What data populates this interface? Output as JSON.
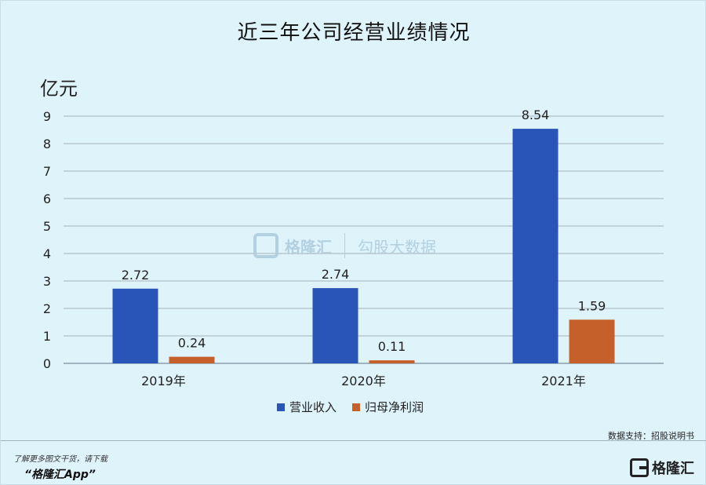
{
  "title": "近三年公司经营业绩情况",
  "unit_label": "亿元",
  "source": "数据支持：招股说明书",
  "promo": {
    "line1": "了解更多图文干货，请下载",
    "line2": "“格隆汇App”"
  },
  "brand": {
    "name": "格隆汇"
  },
  "watermark": {
    "left": "格隆汇",
    "right": "勾股大数据"
  },
  "chart_data": {
    "type": "bar",
    "title": "近三年公司经营业绩情况",
    "ylabel": "亿元",
    "xlabel": "",
    "categories": [
      "2019年",
      "2020年",
      "2021年"
    ],
    "series": [
      {
        "name": "营业收入",
        "values": [
          2.72,
          2.74,
          8.54
        ],
        "color": "#2a55b8"
      },
      {
        "name": "归母净利润",
        "values": [
          0.24,
          0.11,
          1.59
        ],
        "color": "#c6602a"
      }
    ],
    "ylim": [
      0,
      9
    ],
    "yticks": [
      0,
      1,
      2,
      3,
      4,
      5,
      6,
      7,
      8,
      9
    ],
    "grid": true,
    "legend": "bottom-center",
    "data_labels": true
  }
}
